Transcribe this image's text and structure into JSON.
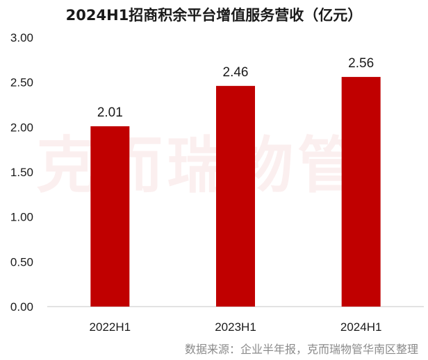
{
  "title": "2024H1招商积余平台增值服务营收（亿元）",
  "watermark": "克而瑞物管",
  "source": "数据来源：企业半年报，克而瑞物管华南区整理",
  "colors": {
    "bar": "#c00000",
    "axis": "#d9d9d9",
    "text": "#1a1a1a",
    "source_text": "#8a8a8a"
  },
  "chart_data": {
    "type": "bar",
    "title": "2024H1招商积余平台增值服务营收（亿元）",
    "categories": [
      "2022H1",
      "2023H1",
      "2024H1"
    ],
    "values": [
      2.01,
      2.46,
      2.56
    ],
    "data_labels": [
      "2.01",
      "2.46",
      "2.56"
    ],
    "yticks": [
      "0.00",
      "0.50",
      "1.00",
      "1.50",
      "2.00",
      "2.50",
      "3.00"
    ],
    "ylim": [
      0,
      3
    ],
    "xlabel": "",
    "ylabel": "",
    "grid": false,
    "legend": "none"
  }
}
